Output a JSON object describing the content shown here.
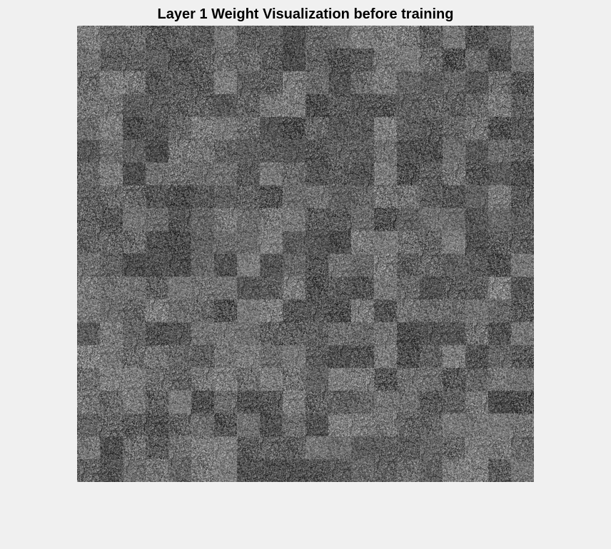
{
  "figure": {
    "title": "Layer 1 Weight Visualization before training",
    "background": "#f0f0f0"
  },
  "chart_data": {
    "type": "heatmap",
    "title": "Layer 1 Weight Visualization before training",
    "colormap": "gray",
    "grid_rows": 20,
    "grid_cols": 20,
    "axis_visible": false,
    "description_values": "random noise weights; per-tile mean gray levels vary slightly around mid-gray",
    "value_range": [
      0,
      1
    ]
  }
}
